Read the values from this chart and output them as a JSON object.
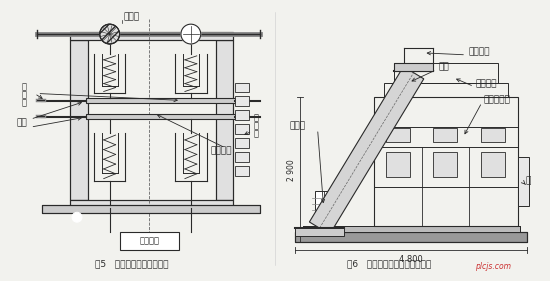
{
  "bg_color": "#f2f2ee",
  "fig5_caption": "图5   真空断路器原理示意图",
  "fig6_caption": "图6   高压真空断路器结构示意图",
  "watermark": "plcjs.com",
  "col": "#2a2a2a"
}
